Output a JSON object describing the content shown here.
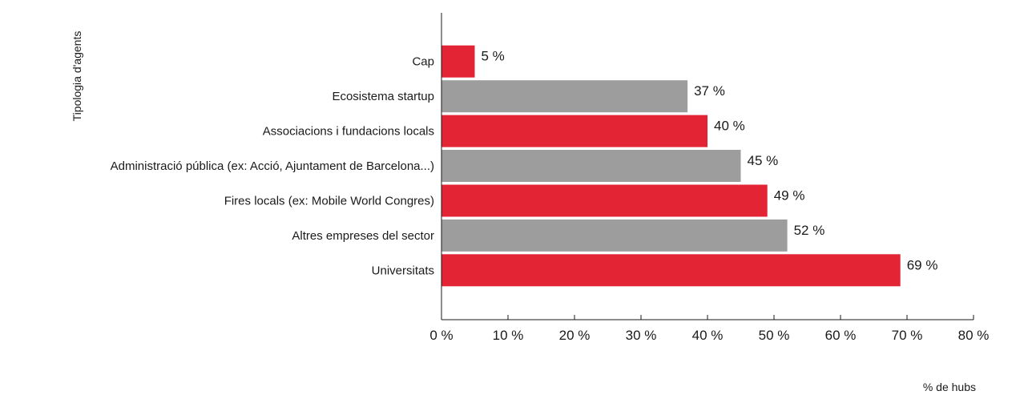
{
  "chart_data": {
    "type": "bar",
    "orientation": "horizontal",
    "ylabel": "Tipologia d'agents",
    "xlabel": "% de hubs",
    "xlim": [
      0,
      80
    ],
    "x_ticks": [
      0,
      10,
      20,
      30,
      40,
      50,
      60,
      70,
      80
    ],
    "x_tick_labels": [
      "0 %",
      "10 %",
      "20 %",
      "30 %",
      "40 %",
      "50 %",
      "60 %",
      "70 %",
      "80 %"
    ],
    "grid": false,
    "bars": [
      {
        "category": "Cap",
        "value": 5,
        "label": "5 %",
        "color": "#e32434"
      },
      {
        "category": "Ecosistema startup",
        "value": 37,
        "label": "37 %",
        "color": "#9d9d9d"
      },
      {
        "category": "Associacions i fundacions locals",
        "value": 40,
        "label": "40 %",
        "color": "#e32434"
      },
      {
        "category": "Administració pública (ex: Acció, Ajuntament de Barcelona...)",
        "value": 45,
        "label": "45 %",
        "color": "#9d9d9d"
      },
      {
        "category": "Fires locals (ex: Mobile World Congres)",
        "value": 49,
        "label": "49 %",
        "color": "#e32434"
      },
      {
        "category": "Altres empreses del sector",
        "value": 52,
        "label": "52 %",
        "color": "#9d9d9d"
      },
      {
        "category": "Universitats",
        "value": 69,
        "label": "69 %",
        "color": "#e32434"
      }
    ]
  }
}
